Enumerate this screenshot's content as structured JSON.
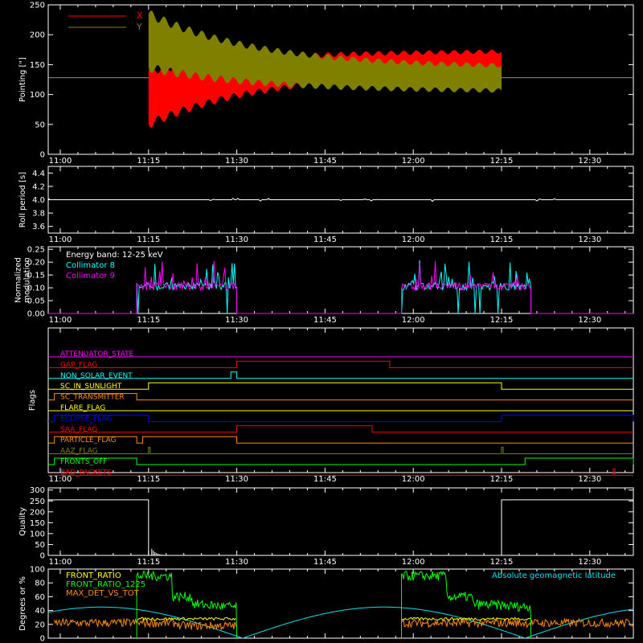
{
  "colors": {
    "background": "#000000",
    "axis": "#ffffff",
    "x": "#ff0000",
    "y": "#808000",
    "c8": "#00ffff",
    "c9": "#ff00ff",
    "front_ratio": "#ffff00",
    "front_ratio_1225": "#00ff00",
    "max_det": "#ff8c00",
    "geomag": "#00e5ee"
  },
  "time_ticks": [
    "11:00",
    "11:15",
    "11:30",
    "11:45",
    "12:00",
    "12:15",
    "12:30"
  ],
  "chart_data": [
    {
      "id": "pointing",
      "type": "line",
      "ylabel": "Pointing [\"]",
      "ylim": [
        0,
        250
      ],
      "yticks": [
        "0",
        "50",
        "100",
        "150",
        "200",
        "250"
      ],
      "reference_line": 128,
      "series": [
        {
          "name": "X",
          "color": "#ff0000",
          "segment": [
            "11:15",
            "12:15"
          ],
          "center": [
            95,
            155
          ],
          "amplitude": [
            45,
            18
          ]
        },
        {
          "name": "Y",
          "color": "#808000",
          "segment": [
            "11:15",
            "12:15"
          ],
          "center": [
            190,
            125
          ],
          "amplitude": [
            45,
            20
          ]
        }
      ]
    },
    {
      "id": "roll",
      "type": "line",
      "ylabel": "Roll period [s]",
      "ylim": [
        3.5,
        4.5
      ],
      "yticks": [
        "3.6",
        "3.8",
        "4.0",
        "4.2",
        "4.4"
      ],
      "series": [
        {
          "name": "",
          "color": "#ffffff",
          "value": 4.0
        }
      ]
    },
    {
      "id": "modulation",
      "type": "line",
      "ylabel_lines": [
        "Normalized",
        "modulation"
      ],
      "ylim": [
        0,
        0.26
      ],
      "yticks": [
        "0.00",
        "0.05",
        "0.10",
        "0.15",
        "0.20",
        "0.25"
      ],
      "annotation": "Energy band: 12-25 keV",
      "series": [
        {
          "name": "Collimator 8",
          "color": "#00ffff",
          "segments": [
            [
              "11:13",
              "11:30"
            ],
            [
              "11:58",
              "12:20"
            ]
          ],
          "level": 0.1
        },
        {
          "name": "Collimator 9",
          "color": "#ff00ff",
          "segments": [
            [
              "11:13",
              "11:30"
            ],
            [
              "11:58",
              "12:20"
            ]
          ],
          "level": 0.1
        }
      ]
    },
    {
      "id": "flags",
      "type": "step",
      "ylabel": "Flags",
      "flags": [
        {
          "name": "ATTENUATOR_STATE",
          "color": "#ff00ff",
          "on": []
        },
        {
          "name": "GAP_FLAG",
          "color": "#ff0000",
          "on": [
            [
              "11:30",
              "11:56"
            ]
          ]
        },
        {
          "name": "NON_SOLAR_EVENT",
          "color": "#00ffff",
          "on": [
            [
              "11:29",
              "11:30"
            ]
          ]
        },
        {
          "name": "SC_IN_SUNLIGHT",
          "color": "#ffff00",
          "on": [
            [
              "11:15",
              "12:15"
            ]
          ]
        },
        {
          "name": "SC_TRANSMITTER",
          "color": "#ff8c00",
          "on": [
            [
              "10:59",
              "11:13"
            ]
          ]
        },
        {
          "name": "FLARE_FLAG",
          "color": "#ffff00",
          "on": []
        },
        {
          "name": "ECLIPSE_FLAG",
          "color": "#0000ff",
          "on": [
            [
              "10:59",
              "11:15"
            ],
            [
              "12:15",
              "12:39"
            ]
          ]
        },
        {
          "name": "SAA_FLAG",
          "color": "#ff0000",
          "on": [
            [
              "11:30",
              "11:53"
            ]
          ]
        },
        {
          "name": "PARTICLE_FLAG",
          "color": "#ff8c00",
          "on": [
            [
              "10:59",
              "11:13"
            ],
            [
              "11:14",
              "11:30"
            ]
          ]
        },
        {
          "name": "AAZ_FLAG",
          "color": "#808000",
          "on": [
            [
              "11:15",
              "11:15"
            ],
            [
              "12:15",
              "12:15"
            ]
          ]
        },
        {
          "name": "FRONTS_OFF",
          "color": "#00ff00",
          "on": [
            [
              "10:59",
              "11:13"
            ],
            [
              "12:19",
              "12:39"
            ]
          ]
        },
        {
          "name": "BAD_PACKETS",
          "color": "#ff0000",
          "on": [
            [
              "12:34",
              "12:34"
            ]
          ]
        }
      ]
    },
    {
      "id": "quality",
      "type": "line",
      "ylabel": "Quality",
      "ylim": [
        0,
        310
      ],
      "yticks": [
        "0",
        "50",
        "100",
        "150",
        "200",
        "250",
        "300"
      ],
      "series": [
        {
          "name": "",
          "color": "#ffffff",
          "segments": [
            [
              "10:59",
              "11:15",
              255
            ],
            [
              "12:15",
              "12:39",
              255
            ]
          ]
        }
      ]
    },
    {
      "id": "ratios",
      "type": "line",
      "ylabel": "Degrees or %",
      "ylim": [
        0,
        100
      ],
      "yticks": [
        "0",
        "20",
        "40",
        "60",
        "80",
        "100"
      ],
      "annotation_right": "Absolute geomagnetic latitude",
      "series": [
        {
          "name": "FRONT_RATIO",
          "color": "#ffff00",
          "segments": [
            [
              "11:13",
              "11:30"
            ],
            [
              "11:58",
              "12:20"
            ]
          ],
          "level": 28
        },
        {
          "name": "FRONT_RATIO_1225",
          "color": "#00ff00",
          "segments": [
            [
              "11:13",
              "11:30"
            ],
            [
              "11:58",
              "12:20"
            ]
          ],
          "levels": [
            90,
            60,
            45
          ]
        },
        {
          "name": "MAX_DET_VS_TOT",
          "color": "#ff8c00",
          "segments": [
            [
              "10:59",
              "11:30"
            ],
            [
              "11:58",
              "12:39"
            ]
          ],
          "level": 22
        },
        {
          "name": "",
          "color": "#00e5ee",
          "geomag": true,
          "amplitude": 45
        }
      ]
    }
  ],
  "panel_labels": {
    "pointing_x": "X",
    "pointing_y": "Y",
    "mod_energy": "Energy band: 12-25 keV",
    "mod_c8": "Collimator 8",
    "mod_c9": "Collimator 9",
    "ratio_front": "FRONT_RATIO",
    "ratio_front1225": "FRONT_RATIO_1225",
    "ratio_maxdet": "MAX_DET_VS_TOT",
    "ratio_geomag": "Absolute geomagnetic latitude"
  }
}
